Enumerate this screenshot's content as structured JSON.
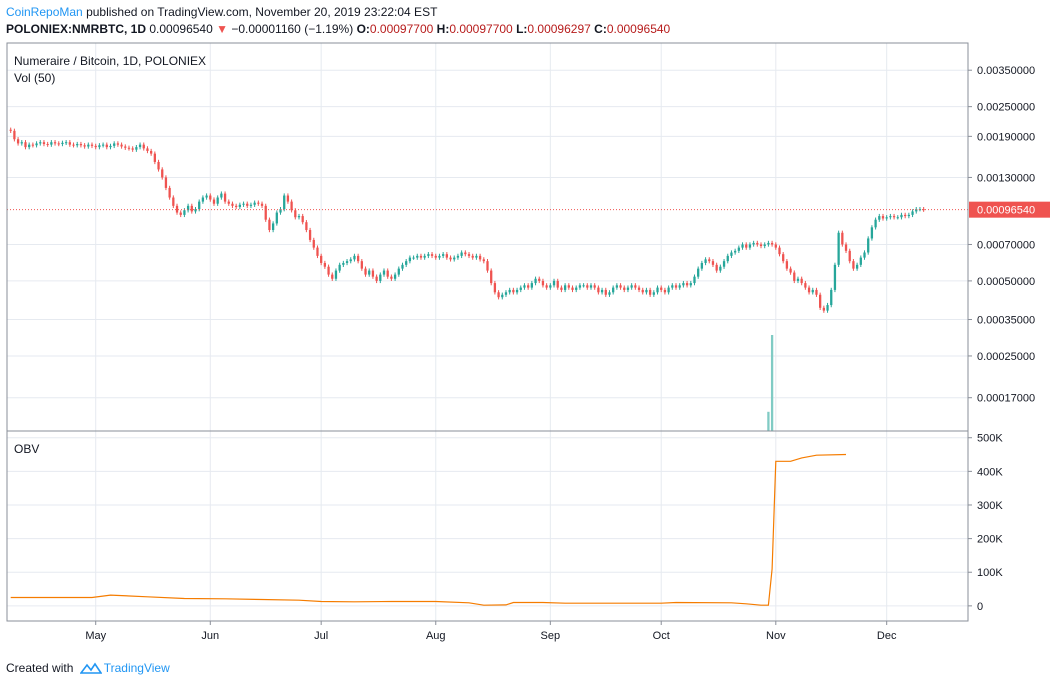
{
  "header": {
    "publisher": "CoinRepoMan",
    "published_text": "published on TradingView.com, November 20, 2019 23:22:04 EST",
    "symbol": "POLONIEX:NMRBTC, 1D",
    "last": "0.00096540",
    "change_arrow": "▼",
    "change": "−0.00001160 (−1.19%)",
    "o_label": "O:",
    "o": "0.00097700",
    "h_label": "H:",
    "h": "0.00097700",
    "l_label": "L:",
    "l": "0.00096297",
    "c_label": "C:",
    "c": "0.00096540"
  },
  "footer": {
    "created_with": "Created with",
    "brand": "TradingView",
    "logo_icon": "tradingview-logo-icon"
  },
  "colors": {
    "up": "#26a69a",
    "down": "#ef5350",
    "obv": "#f57c00",
    "grid": "#e6eaf0",
    "price_line": "#ef5350"
  },
  "chart_data": [
    {
      "type": "candlestick",
      "title": "Numeraire / Bitcoin, 1D, POLONIEX",
      "volume_label": "Vol (50)",
      "y_scale": "log",
      "y_ticks": [
        "0.00350000",
        "0.00250000",
        "0.00190000",
        "0.00130000",
        "0.00070000",
        "0.00050000",
        "0.00035000",
        "0.00025000",
        "0.00017000"
      ],
      "y_tick_values": [
        0.0035,
        0.0025,
        0.0019,
        0.0013,
        0.0007,
        0.0005,
        0.00035,
        0.00025,
        0.00017
      ],
      "current_price_label": "0.00096540",
      "current_price": 0.0009654,
      "x_ticks": [
        "May",
        "Jun",
        "Jul",
        "Aug",
        "Sep",
        "Oct",
        "Nov",
        "Dec"
      ],
      "x_tick_dates": [
        "2019-05-01",
        "2019-06-01",
        "2019-07-01",
        "2019-08-01",
        "2019-09-01",
        "2019-10-01",
        "2019-11-01",
        "2019-12-01"
      ],
      "x_range": [
        "2019-04-07",
        "2019-12-23"
      ],
      "y_range": [
        0.000125,
        0.0045
      ],
      "price_series": {
        "start_date": "2019-04-08",
        "close": [
          0.002,
          0.00185,
          0.00178,
          0.0018,
          0.00172,
          0.00176,
          0.00175,
          0.00178,
          0.0018,
          0.00177,
          0.00176,
          0.0018,
          0.00178,
          0.00177,
          0.00179,
          0.0018,
          0.00176,
          0.00175,
          0.00177,
          0.00175,
          0.00173,
          0.00176,
          0.00174,
          0.00172,
          0.00175,
          0.00176,
          0.00172,
          0.00174,
          0.00178,
          0.00176,
          0.00173,
          0.00171,
          0.0017,
          0.00168,
          0.00172,
          0.00176,
          0.0017,
          0.00166,
          0.00162,
          0.0015,
          0.0014,
          0.0013,
          0.00118,
          0.00108,
          0.001,
          0.00094,
          0.00092,
          0.00096,
          0.001,
          0.00095,
          0.00097,
          0.00104,
          0.00108,
          0.0011,
          0.00106,
          0.00102,
          0.00108,
          0.00112,
          0.00104,
          0.00102,
          0.001,
          0.00099,
          0.00101,
          0.00102,
          0.001,
          0.00101,
          0.00103,
          0.00102,
          0.001,
          0.00088,
          0.0008,
          0.00085,
          0.00094,
          0.00097,
          0.0011,
          0.00104,
          0.00096,
          0.0009,
          0.00091,
          0.00086,
          0.0008,
          0.00073,
          0.00068,
          0.00063,
          0.00059,
          0.00057,
          0.00053,
          0.00051,
          0.00055,
          0.00058,
          0.00059,
          0.0006,
          0.00061,
          0.00063,
          0.0006,
          0.00056,
          0.00053,
          0.00055,
          0.00052,
          0.0005,
          0.00053,
          0.00055,
          0.00052,
          0.00051,
          0.00053,
          0.00056,
          0.00058,
          0.0006,
          0.00062,
          0.00062,
          0.00063,
          0.00062,
          0.00063,
          0.00064,
          0.00063,
          0.00062,
          0.00063,
          0.00064,
          0.00062,
          0.00061,
          0.00062,
          0.00063,
          0.00065,
          0.00064,
          0.00063,
          0.00062,
          0.00063,
          0.00061,
          0.0006,
          0.00055,
          0.00049,
          0.00045,
          0.00043,
          0.00044,
          0.00045,
          0.00046,
          0.00045,
          0.00046,
          0.00047,
          0.00048,
          0.00047,
          0.00049,
          0.00051,
          0.0005,
          0.00048,
          0.00047,
          0.00048,
          0.0005,
          0.00047,
          0.00046,
          0.00048,
          0.00047,
          0.00046,
          0.00047,
          0.00048,
          0.00048,
          0.00047,
          0.00048,
          0.00047,
          0.00045,
          0.00046,
          0.00044,
          0.00045,
          0.00047,
          0.00048,
          0.00047,
          0.00046,
          0.00047,
          0.00048,
          0.00047,
          0.00046,
          0.00045,
          0.00046,
          0.00044,
          0.00045,
          0.00047,
          0.00046,
          0.00045,
          0.00047,
          0.00048,
          0.00047,
          0.00048,
          0.00049,
          0.00048,
          0.00049,
          0.00052,
          0.00056,
          0.00059,
          0.00061,
          0.0006,
          0.00058,
          0.00055,
          0.00057,
          0.0006,
          0.00063,
          0.00065,
          0.00066,
          0.00068,
          0.0007,
          0.00068,
          0.0007,
          0.00071,
          0.0007,
          0.00069,
          0.0007,
          0.00071,
          0.0007,
          0.00068,
          0.00064,
          0.0006,
          0.00056,
          0.00054,
          0.0005,
          0.00051,
          0.00049,
          0.00047,
          0.00045,
          0.00046,
          0.00044,
          0.00039,
          0.00038,
          0.0004,
          0.00046,
          0.00058,
          0.00078,
          0.0007,
          0.00066,
          0.0006,
          0.00056,
          0.00058,
          0.00062,
          0.00065,
          0.00074,
          0.00082,
          0.00088,
          0.00091,
          0.00089,
          0.0009,
          0.00091,
          0.0009,
          0.0009,
          0.00092,
          0.00091,
          0.00092,
          0.00095,
          0.00097,
          0.00097,
          0.0009654
        ]
      },
      "volume_spikes": [
        {
          "date": "2019-10-30",
          "value": 0.2
        },
        {
          "date": "2019-10-31",
          "value": 1.0
        }
      ]
    },
    {
      "type": "line",
      "title": "OBV",
      "y_ticks": [
        "500K",
        "400K",
        "300K",
        "200K",
        "100K",
        "0"
      ],
      "y_tick_values": [
        500000,
        400000,
        300000,
        200000,
        100000,
        0
      ],
      "y_range": [
        -45000,
        520000
      ],
      "points": [
        {
          "date": "2019-04-08",
          "value": 25000
        },
        {
          "date": "2019-04-30",
          "value": 25000
        },
        {
          "date": "2019-05-05",
          "value": 32000
        },
        {
          "date": "2019-05-15",
          "value": 27000
        },
        {
          "date": "2019-05-25",
          "value": 22000
        },
        {
          "date": "2019-06-05",
          "value": 21000
        },
        {
          "date": "2019-06-15",
          "value": 19000
        },
        {
          "date": "2019-06-25",
          "value": 17000
        },
        {
          "date": "2019-07-01",
          "value": 13000
        },
        {
          "date": "2019-07-10",
          "value": 12000
        },
        {
          "date": "2019-07-20",
          "value": 13000
        },
        {
          "date": "2019-08-01",
          "value": 13000
        },
        {
          "date": "2019-08-10",
          "value": 9000
        },
        {
          "date": "2019-08-14",
          "value": 2000
        },
        {
          "date": "2019-08-20",
          "value": 3000
        },
        {
          "date": "2019-08-22",
          "value": 10000
        },
        {
          "date": "2019-08-30",
          "value": 10000
        },
        {
          "date": "2019-09-05",
          "value": 8000
        },
        {
          "date": "2019-09-20",
          "value": 8000
        },
        {
          "date": "2019-10-01",
          "value": 8000
        },
        {
          "date": "2019-10-05",
          "value": 10000
        },
        {
          "date": "2019-10-20",
          "value": 9000
        },
        {
          "date": "2019-10-24",
          "value": 6000
        },
        {
          "date": "2019-10-28",
          "value": 2000
        },
        {
          "date": "2019-10-30",
          "value": 2000
        },
        {
          "date": "2019-10-31",
          "value": 110000
        },
        {
          "date": "2019-11-01",
          "value": 430000
        },
        {
          "date": "2019-11-05",
          "value": 430000
        },
        {
          "date": "2019-11-08",
          "value": 440000
        },
        {
          "date": "2019-11-12",
          "value": 448000
        },
        {
          "date": "2019-11-20",
          "value": 450000
        }
      ]
    }
  ]
}
